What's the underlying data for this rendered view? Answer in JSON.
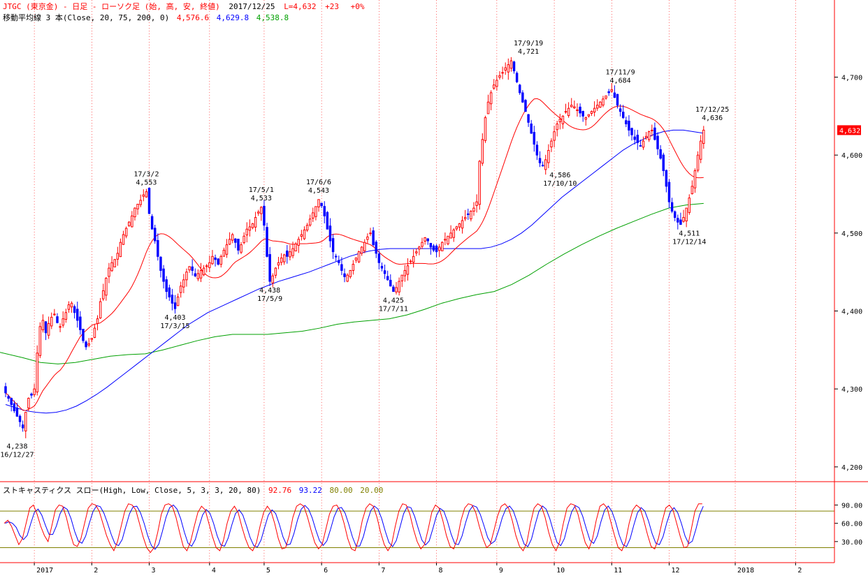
{
  "header": {
    "symbol_line": "JTGC (東京金) - 日足 - ローソク足 (始, 高, 安, 終値)",
    "date": "2017/12/25",
    "last_label": "L=4,632",
    "change": "+23",
    "change_pct": "+0%",
    "ma_title": "移動平均線 3 本(Close, 20, 75, 200, 0)",
    "ma_values": [
      "4,576.6",
      "4,629.8",
      "4,538.8"
    ]
  },
  "stoch_header": {
    "title": "ストキャスティクス スロー(High, Low, Close, 5, 3, 3, 20, 80)",
    "values": [
      "92.76",
      "93.22",
      "80.00",
      "20.00"
    ]
  },
  "colors": {
    "up": "#ff0000",
    "down": "#0000ff",
    "ma20": "#ff0000",
    "ma75": "#0000ff",
    "ma200": "#00a000",
    "stoch_k": "#ff0000",
    "stoch_d": "#0000ff",
    "band": "#808000",
    "frame": "#ff0000",
    "grid": "#ff0000"
  },
  "price_tag": "4,632",
  "chart_data": {
    "type": "candlestick",
    "ylim": [
      4190,
      4790
    ],
    "yticks": [
      "4,200",
      "4,300",
      "4,400",
      "4,500",
      "4,600",
      "4,700"
    ],
    "ytick_values": [
      4200,
      4300,
      4400,
      4500,
      4600,
      4700
    ],
    "month_labels": [
      "2017",
      "2",
      "3",
      "4",
      "5",
      "6",
      "7",
      "8",
      "9",
      "10",
      "11",
      "12",
      "2018",
      "2"
    ],
    "month_index": [
      10,
      30,
      50,
      71,
      90,
      110,
      130,
      150,
      171,
      191,
      211,
      231,
      254,
      275
    ],
    "closes": [
      4295,
      4288,
      4280,
      4272,
      4265,
      4258,
      4250,
      4270,
      4288,
      4292,
      4300,
      4346,
      4380,
      4388,
      4372,
      4384,
      4392,
      4396,
      4385,
      4380,
      4390,
      4398,
      4408,
      4410,
      4398,
      4388,
      4376,
      4362,
      4354,
      4358,
      4365,
      4378,
      4390,
      4412,
      4426,
      4442,
      4455,
      4462,
      4466,
      4474,
      4488,
      4498,
      4506,
      4514,
      4522,
      4532,
      4537,
      4542,
      4549,
      4553,
      4525,
      4505,
      4490,
      4470,
      4452,
      4438,
      4425,
      4418,
      4410,
      4403,
      4418,
      4432,
      4440,
      4450,
      4457,
      4452,
      4445,
      4448,
      4452,
      4455,
      4458,
      4462,
      4470,
      4466,
      4460,
      4470,
      4478,
      4485,
      4492,
      4498,
      4488,
      4478,
      4485,
      4496,
      4505,
      4508,
      4512,
      4520,
      4527,
      4533,
      4510,
      4470,
      4438,
      4445,
      4455,
      4462,
      4468,
      4472,
      4470,
      4476,
      4480,
      4486,
      4492,
      4498,
      4504,
      4510,
      4518,
      4526,
      4534,
      4543,
      4535,
      4522,
      4505,
      4490,
      4476,
      4470,
      4462,
      4452,
      4444,
      4446,
      4452,
      4460,
      4468,
      4476,
      4482,
      4488,
      4495,
      4500,
      4485,
      4474,
      4462,
      4455,
      4448,
      4440,
      4432,
      4425,
      4430,
      4438,
      4446,
      4452,
      4458,
      4464,
      4470,
      4476,
      4482,
      4488,
      4494,
      4490,
      4482,
      4478,
      4476,
      4482,
      4488,
      4492,
      4496,
      4500,
      4504,
      4508,
      4512,
      4516,
      4520,
      4524,
      4528,
      4532,
      4540,
      4592,
      4620,
      4648,
      4668,
      4680,
      4690,
      4696,
      4702,
      4706,
      4712,
      4716,
      4721,
      4708,
      4694,
      4680,
      4668,
      4656,
      4642,
      4628,
      4614,
      4600,
      4590,
      4586,
      4594,
      4606,
      4618,
      4630,
      4640,
      4646,
      4650,
      4656,
      4660,
      4664,
      4662,
      4658,
      4654,
      4650,
      4648,
      4652,
      4656,
      4660,
      4664,
      4668,
      4672,
      4676,
      4680,
      4684,
      4674,
      4664,
      4656,
      4648,
      4640,
      4632,
      4626,
      4620,
      4616,
      4612,
      4618,
      4624,
      4630,
      4632,
      4620,
      4608,
      4596,
      4580,
      4560,
      4540,
      4528,
      4520,
      4514,
      4511,
      4520,
      4532,
      4545,
      4560,
      4580,
      4600,
      4618,
      4632
    ],
    "opens_offset": 8,
    "extremes": [
      {
        "idx": 4,
        "price": 4238,
        "value": "4,238",
        "date": "16/12/27",
        "pos": "below"
      },
      {
        "idx": 49,
        "price": 4553,
        "value": "4,553",
        "date": "17/3/2",
        "pos": "above"
      },
      {
        "idx": 59,
        "price": 4403,
        "value": "4,403",
        "date": "17/3/15",
        "pos": "below"
      },
      {
        "idx": 89,
        "price": 4533,
        "value": "4,533",
        "date": "17/5/1",
        "pos": "above"
      },
      {
        "idx": 92,
        "price": 4438,
        "value": "4,438",
        "date": "17/5/9",
        "pos": "below"
      },
      {
        "idx": 109,
        "price": 4543,
        "value": "4,543",
        "date": "17/6/6",
        "pos": "above"
      },
      {
        "idx": 135,
        "price": 4425,
        "value": "4,425",
        "date": "17/7/11",
        "pos": "below"
      },
      {
        "idx": 182,
        "price": 4721,
        "value": "4,721",
        "date": "17/9/19",
        "pos": "above"
      },
      {
        "idx": 193,
        "price": 4586,
        "value": "4,586",
        "date": "17/10/10",
        "pos": "below"
      },
      {
        "idx": 214,
        "price": 4684,
        "value": "4,684",
        "date": "17/11/9",
        "pos": "above"
      },
      {
        "idx": 238,
        "price": 4511,
        "value": "4,511",
        "date": "17/12/14",
        "pos": "below"
      },
      {
        "idx": 246,
        "price": 4636,
        "value": "4,636",
        "date": "17/12/25",
        "pos": "above"
      }
    ],
    "ma75": [
      4280,
      4276,
      4272,
      4270,
      4269,
      4270,
      4273,
      4278,
      4285,
      4293,
      4302,
      4312,
      4322,
      4332,
      4342,
      4352,
      4362,
      4372,
      4382,
      4390,
      4398,
      4404,
      4410,
      4416,
      4422,
      4428,
      4433,
      4438,
      4442,
      4446,
      4450,
      4455,
      4460,
      4465,
      4470,
      4474,
      4477,
      4479,
      4480,
      4480,
      4480,
      4480,
      4480,
      4480,
      4480,
      4480,
      4480,
      4480,
      4482,
      4486,
      4492,
      4500,
      4510,
      4522,
      4534,
      4546,
      4556,
      4566,
      4576,
      4586,
      4596,
      4606,
      4614,
      4620,
      4626,
      4630,
      4632,
      4632,
      4630,
      4628
    ],
    "ma200": [
      4347,
      4340,
      4334,
      4332,
      4334,
      4338,
      4342,
      4344,
      4345,
      4350,
      4356,
      4362,
      4367,
      4370,
      4370,
      4370,
      4372,
      4374,
      4378,
      4383,
      4386,
      4388,
      4390,
      4395,
      4402,
      4410,
      4416,
      4421,
      4425,
      4434,
      4446,
      4460,
      4473,
      4485,
      4496,
      4506,
      4515,
      4524,
      4532,
      4536,
      4538
    ],
    "stoch": {
      "ylim": [
        0,
        110
      ],
      "yticks": [
        "30.00",
        "60.00",
        "90.00"
      ],
      "ytick_values": [
        30,
        60,
        90
      ],
      "bands": [
        20,
        80
      ],
      "k": [
        60,
        65,
        55,
        40,
        25,
        35,
        60,
        85,
        90,
        75,
        55,
        40,
        30,
        55,
        82,
        90,
        88,
        70,
        45,
        25,
        22,
        35,
        60,
        85,
        92,
        90,
        80,
        60,
        40,
        25,
        15,
        30,
        55,
        80,
        92,
        90,
        82,
        60,
        38,
        20,
        12,
        20,
        45,
        75,
        90,
        92,
        88,
        70,
        45,
        22,
        15,
        30,
        55,
        78,
        88,
        82,
        60,
        38,
        20,
        15,
        32,
        60,
        80,
        88,
        78,
        55,
        35,
        20,
        15,
        28,
        55,
        78,
        88,
        80,
        60,
        35,
        18,
        20,
        40,
        70,
        88,
        92,
        88,
        70,
        48,
        28,
        18,
        25,
        50,
        75,
        88,
        90,
        80,
        60,
        35,
        18,
        15,
        35,
        65,
        85,
        92,
        88,
        70,
        45,
        25,
        15,
        25,
        55,
        80,
        92,
        90,
        75,
        50,
        30,
        18,
        25,
        50,
        78,
        90,
        85,
        65,
        40,
        22,
        18,
        35,
        65,
        85,
        92,
        90,
        78,
        55,
        35,
        20,
        25,
        48,
        72,
        88,
        92,
        85,
        65,
        40,
        22,
        15,
        28,
        60,
        85,
        92,
        88,
        70,
        45,
        25,
        15,
        30,
        60,
        85,
        92,
        90,
        75,
        50,
        28,
        18,
        35,
        65,
        88,
        92,
        85,
        62,
        40,
        20,
        15,
        30,
        60,
        82,
        90,
        85,
        65,
        42,
        22,
        18,
        35,
        62,
        85,
        90,
        82,
        60,
        38,
        20,
        22,
        50,
        80,
        92,
        92
      ]
    }
  }
}
